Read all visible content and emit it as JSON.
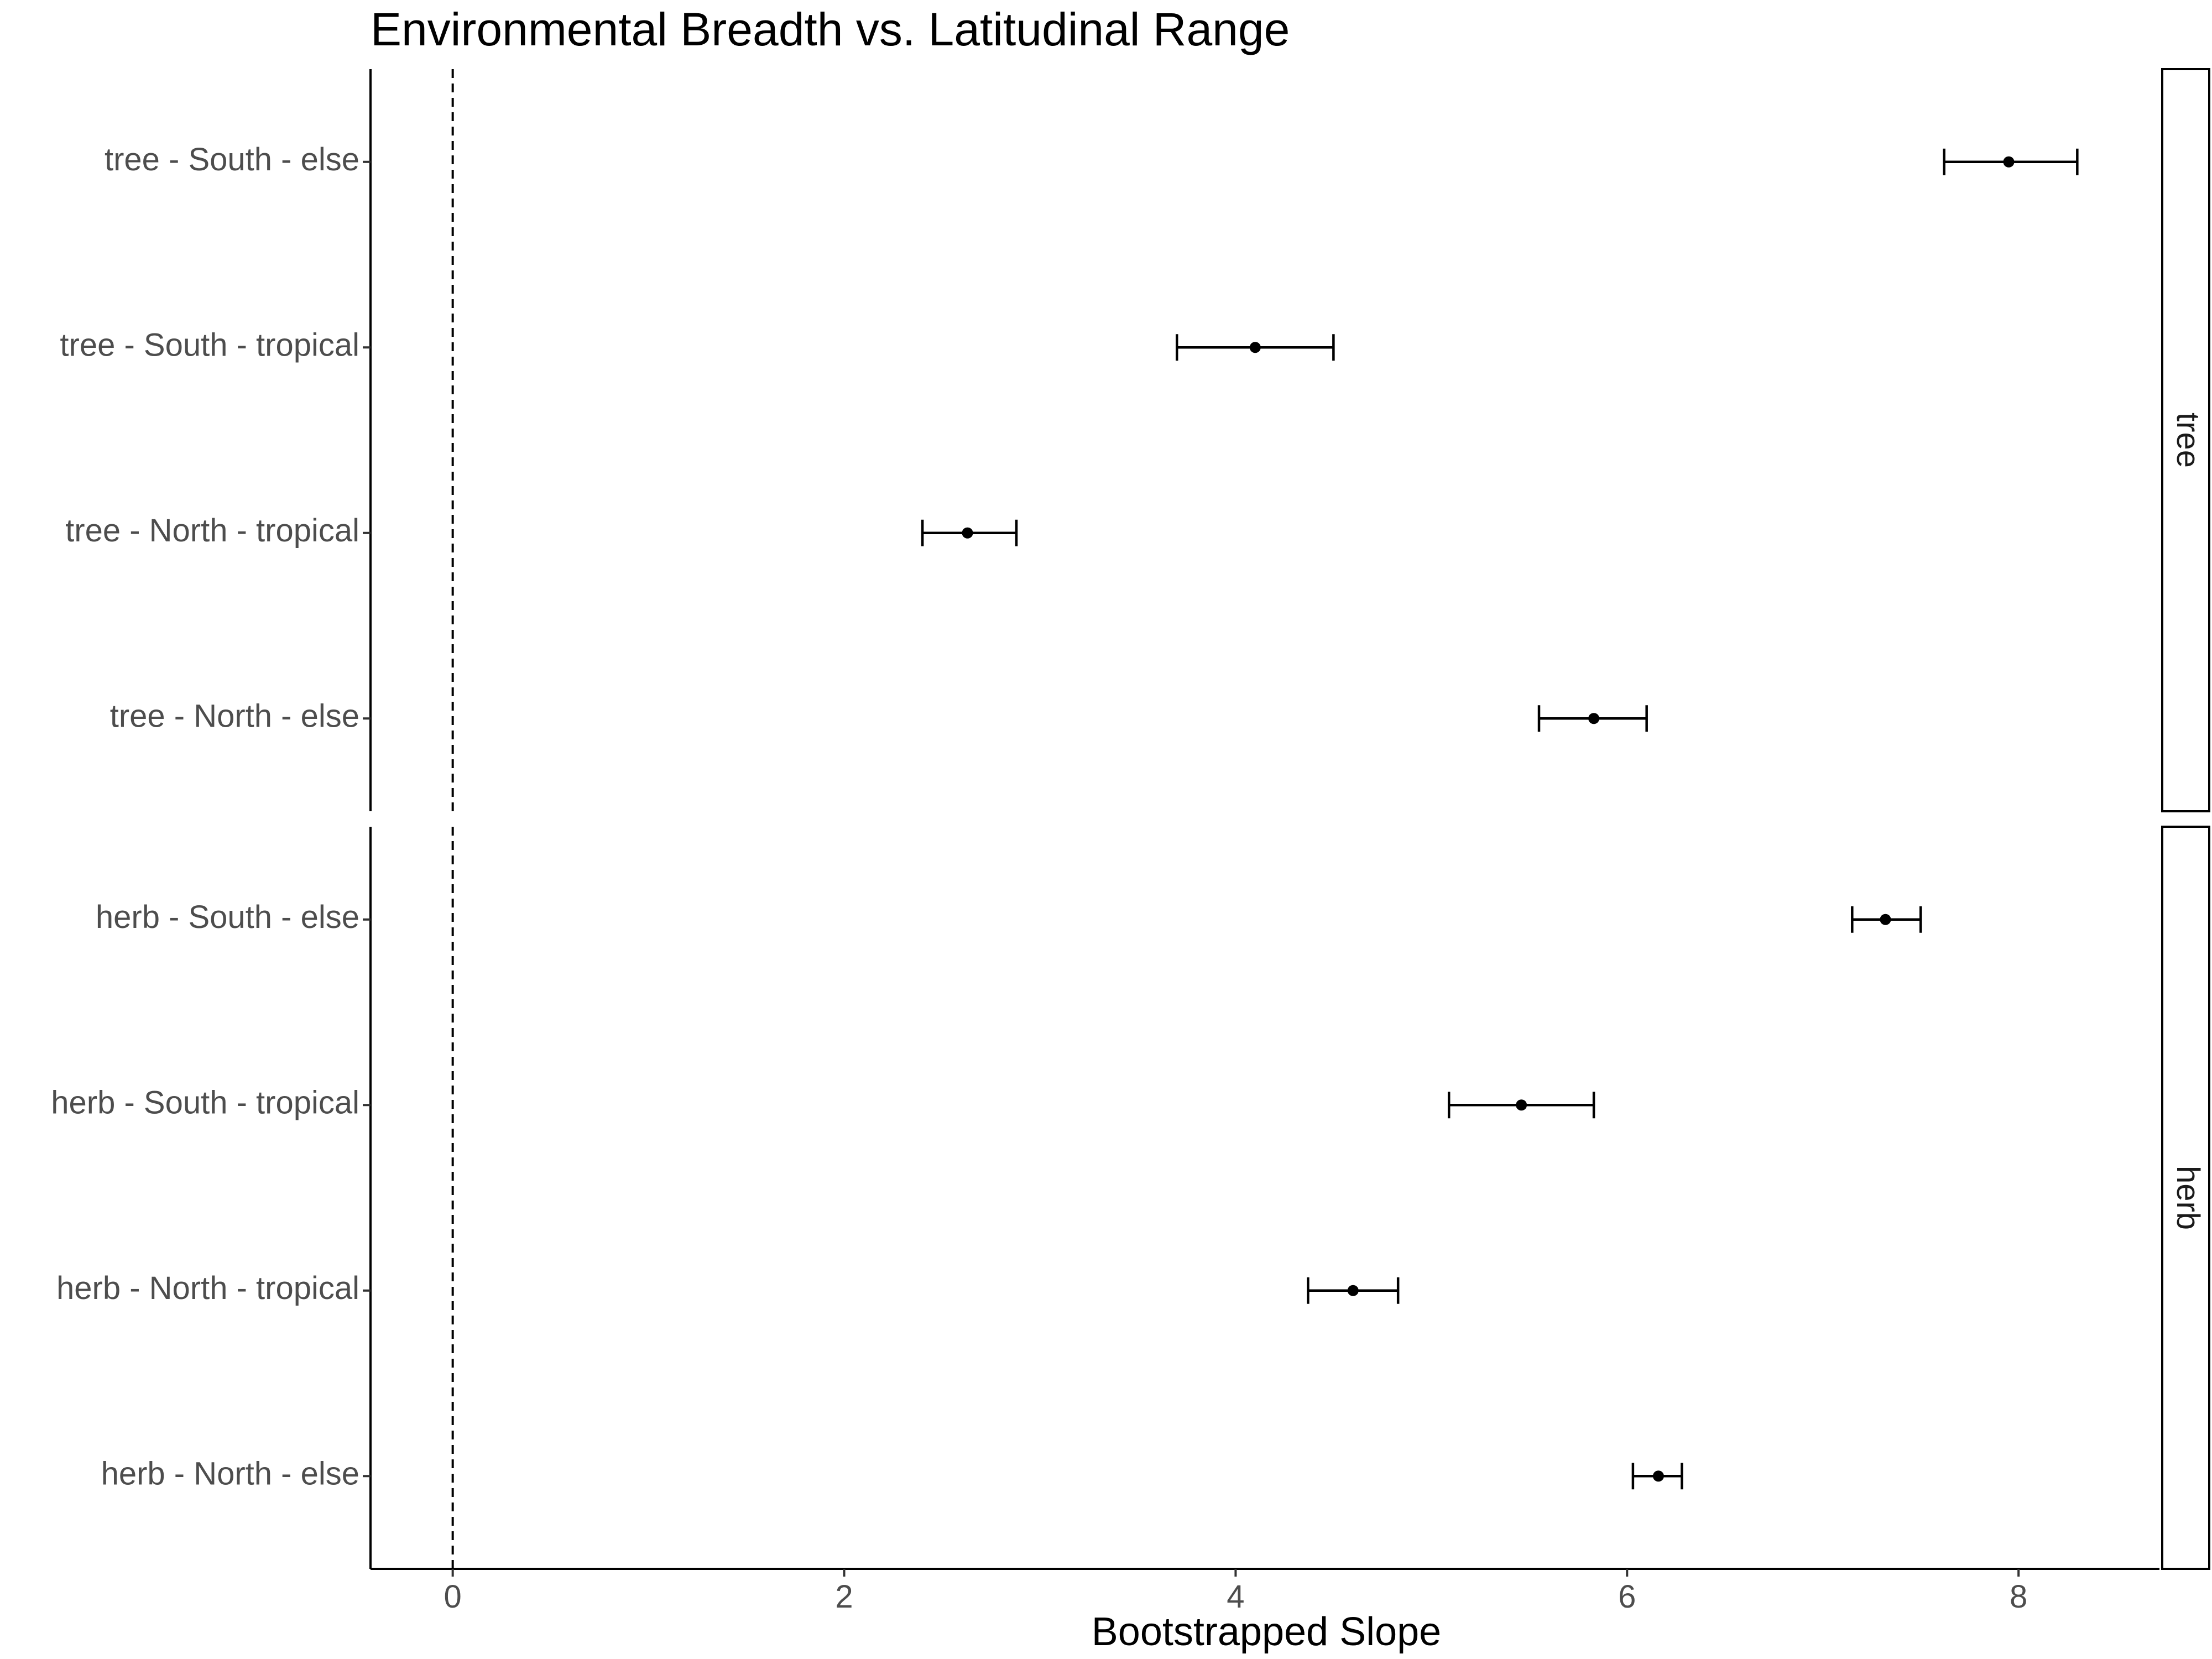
{
  "chart_data": {
    "type": "errorbar",
    "title": "Environmental Breadth vs. Latitudinal Range",
    "xlabel": "Bootstrapped Slope",
    "ylabel": "",
    "xlim": [
      -0.42,
      8.72
    ],
    "xticks": [
      0,
      2,
      4,
      6,
      8
    ],
    "reference_line": {
      "x": 0,
      "style": "dashed"
    },
    "grid": false,
    "legend": "none",
    "point_color": "#000000",
    "panels": [
      {
        "strip": "tree",
        "rows": [
          {
            "label": "tree - South - else",
            "estimate": 7.95,
            "lower": 7.62,
            "upper": 8.3
          },
          {
            "label": "tree - South - tropical",
            "estimate": 4.1,
            "lower": 3.7,
            "upper": 4.5
          },
          {
            "label": "tree - North - tropical",
            "estimate": 2.63,
            "lower": 2.4,
            "upper": 2.88
          },
          {
            "label": "tree - North - else",
            "estimate": 5.83,
            "lower": 5.55,
            "upper": 6.1
          }
        ]
      },
      {
        "strip": "herb",
        "rows": [
          {
            "label": "herb - South - else",
            "estimate": 7.32,
            "lower": 7.15,
            "upper": 7.5
          },
          {
            "label": "herb - South - tropical",
            "estimate": 5.46,
            "lower": 5.09,
            "upper": 5.83
          },
          {
            "label": "herb - North - tropical",
            "estimate": 4.6,
            "lower": 4.37,
            "upper": 4.83
          },
          {
            "label": "herb - North - else",
            "estimate": 6.16,
            "lower": 6.03,
            "upper": 6.28
          }
        ]
      }
    ]
  }
}
